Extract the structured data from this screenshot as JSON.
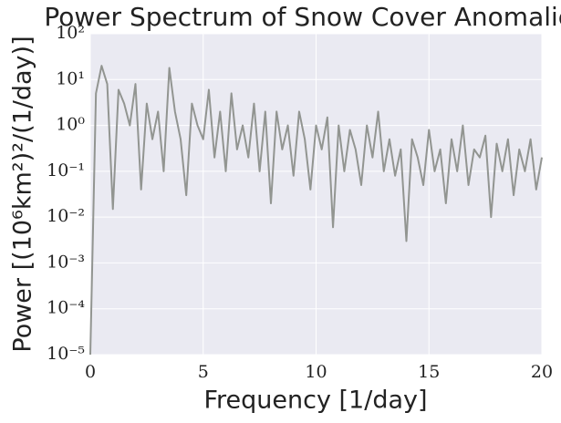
{
  "chart_data": {
    "type": "line",
    "title": "Power Spectrum of Snow Cover Anomalies",
    "x_label": "Frequency [1/day]",
    "y_label": "Power [(10⁶km²)²/(1/day)]",
    "x": [
      0,
      0.25,
      0.5,
      0.75,
      1,
      1.25,
      1.5,
      1.75,
      2,
      2.25,
      2.5,
      2.75,
      3,
      3.25,
      3.5,
      3.75,
      4,
      4.25,
      4.5,
      4.75,
      5,
      5.25,
      5.5,
      5.75,
      6,
      6.25,
      6.5,
      6.75,
      7,
      7.25,
      7.5,
      7.75,
      8,
      8.25,
      8.5,
      8.75,
      9,
      9.25,
      9.5,
      9.75,
      10,
      10.25,
      10.5,
      10.75,
      11,
      11.25,
      11.5,
      11.75,
      12,
      12.25,
      12.5,
      12.75,
      13,
      13.25,
      13.5,
      13.75,
      14,
      14.25,
      14.5,
      14.75,
      15,
      15.25,
      15.5,
      15.75,
      16,
      16.25,
      16.5,
      16.75,
      17,
      17.25,
      17.5,
      17.75,
      18,
      18.25,
      18.5,
      18.75,
      19,
      19.25,
      19.5,
      19.75,
      20
    ],
    "series": [
      {
        "color": "#929591",
        "values": [
          1e-05,
          5,
          20,
          8,
          0.015,
          6,
          3,
          1,
          8,
          0.04,
          3,
          0.5,
          2,
          0.1,
          18,
          2,
          0.5,
          0.03,
          3,
          1,
          0.5,
          6,
          0.2,
          2,
          0.1,
          5,
          0.3,
          1,
          0.2,
          3,
          0.1,
          2,
          0.02,
          2,
          0.3,
          1,
          0.08,
          2,
          0.5,
          0.04,
          1,
          0.3,
          1.5,
          0.006,
          1,
          0.1,
          0.8,
          0.3,
          0.05,
          1,
          0.2,
          2,
          0.1,
          0.5,
          0.08,
          0.3,
          0.003,
          0.5,
          0.2,
          0.05,
          0.8,
          0.1,
          0.3,
          0.02,
          0.5,
          0.1,
          1,
          0.05,
          0.3,
          0.2,
          0.6,
          0.01,
          0.4,
          0.1,
          0.5,
          0.03,
          0.3,
          0.1,
          0.5,
          0.04,
          0.2
        ]
      }
    ],
    "xlim": [
      0,
      20
    ],
    "xticks": [
      0,
      5,
      10,
      15,
      20
    ],
    "ylim": [
      1e-05,
      100
    ],
    "yticks": [
      {
        "value": 1e-05,
        "label": "10⁻⁵"
      },
      {
        "value": 0.0001,
        "label": "10⁻⁴"
      },
      {
        "value": 0.001,
        "label": "10⁻³"
      },
      {
        "value": 0.01,
        "label": "10⁻²"
      },
      {
        "value": 0.1,
        "label": "10⁻¹"
      },
      {
        "value": 1,
        "label": "10⁰"
      },
      {
        "value": 10,
        "label": "10¹"
      },
      {
        "value": 100,
        "label": "10²"
      }
    ],
    "y_scale": "log",
    "grid": true
  }
}
